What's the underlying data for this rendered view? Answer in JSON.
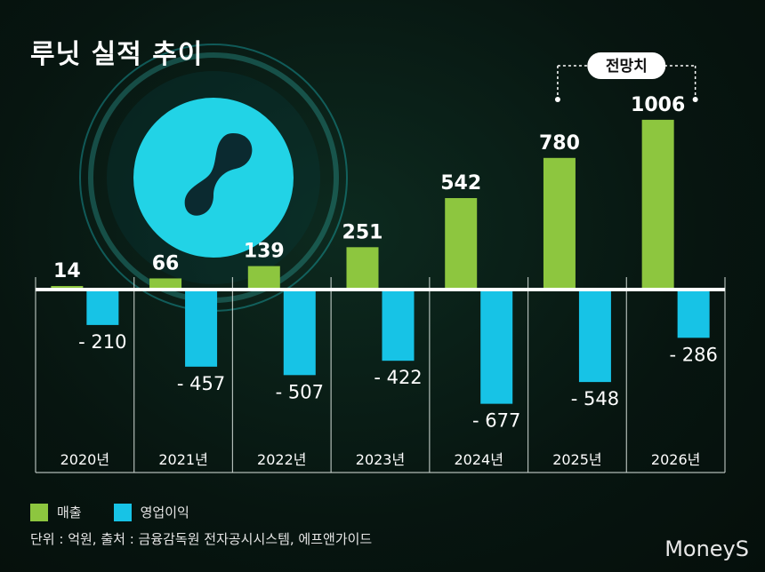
{
  "title": "루닛 실적 추이",
  "forecast_label": "전망치",
  "legend": {
    "revenue": "매출",
    "operating": "영업이익"
  },
  "note": "단위 : 억원, 출처 : 금융감독원 전자공시시스템, 에프앤가이드",
  "logo": "MoneyS",
  "colors": {
    "revenue": "#8dc63f",
    "operating": "#17c3e6",
    "background": "#071510",
    "text": "#ffffff"
  },
  "chart_data": {
    "type": "bar",
    "categories": [
      "2020년",
      "2021년",
      "2022년",
      "2023년",
      "2024년",
      "2025년",
      "2026년"
    ],
    "series": [
      {
        "name": "매출",
        "values": [
          14,
          66,
          139,
          251,
          542,
          780,
          1006
        ],
        "labels": [
          "14",
          "66",
          "139",
          "251",
          "542",
          "780",
          "1006"
        ]
      },
      {
        "name": "영업이익",
        "values": [
          -210,
          -457,
          -507,
          -422,
          -677,
          -548,
          -286
        ],
        "labels": [
          "- 210",
          "- 457",
          "- 507",
          "- 422",
          "- 677",
          "- 548",
          "- 286"
        ]
      }
    ],
    "forecast_categories": [
      "2025년",
      "2026년"
    ],
    "ylim": [
      -700,
      1050
    ]
  }
}
